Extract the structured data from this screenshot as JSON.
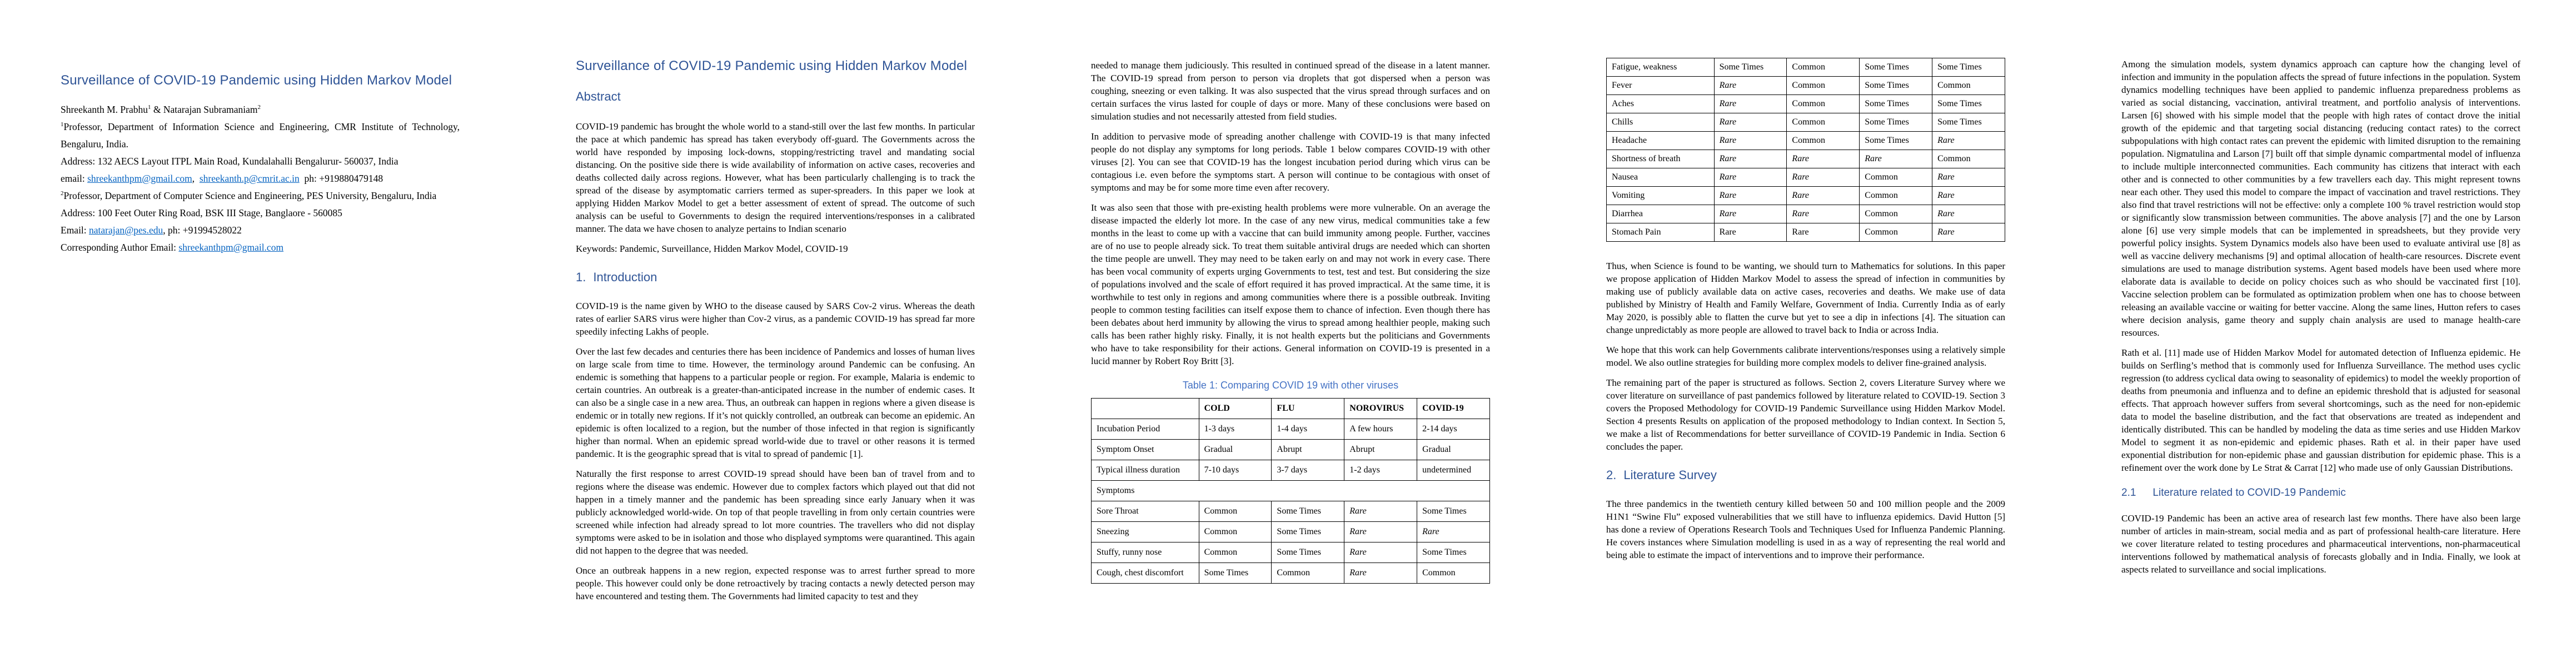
{
  "colors": {
    "heading_blue": "#2F5496",
    "caption_blue": "#4472C4",
    "link_blue": "#0563C1",
    "text": "#000000",
    "page_background": "#ffffff"
  },
  "page1": {
    "title": "Surveillance of COVID-19 Pandemic using Hidden Markov Model",
    "author": {
      "name1": "Shreekanth M. Prabhu",
      "sup1": "1",
      "amp": " & ",
      "name2": "Natarajan Subramaniam",
      "sup2": "2"
    },
    "affil1": {
      "sup": "1",
      "text": "Professor, Department of Information Science and Engineering, CMR Institute of Technology, Bengaluru, India."
    },
    "address1": "Address: 132 AECS Layout ITPL Main Road, Kundalahalli Bengalurur- 560037, India",
    "email_line1": {
      "label": "email: ",
      "link1": "shreekanthpm@gmail.com",
      "sep": ",  ",
      "link2": "shreekanth.p@cmrit.ac.in",
      "tail": "  ph: +919880479148"
    },
    "affil2": {
      "sup": "2",
      "text": "Professor, Department of Computer Science and Engineering, PES University, Bengaluru, India"
    },
    "address2": "Address: 100 Feet Outer Ring Road, BSK III Stage, Banglaore - 560085",
    "email_line2": {
      "label": "Email: ",
      "link": "natarajan@pes.edu",
      "tail": ", ph: +91994528022"
    },
    "corresponding": {
      "label": "Corresponding Author Email: ",
      "link": "shreekanthpm@gmail.com"
    }
  },
  "page2": {
    "title": "Surveillance of COVID-19 Pandemic using Hidden Markov Model",
    "abstract_heading": "Abstract",
    "abstract_text": "COVID-19 pandemic has brought the whole world to a stand-still over the last few months.  In particular the pace at which pandemic has spread has taken everybody off-guard.  The Governments across the world have responded by imposing lock-downs, stopping/restricting travel and mandating social distancing. On the positive side there is wide availability of information on active cases, recoveries and deaths collected daily across regions. However, what has been particularly challenging is to track the spread of the disease by asymptomatic carriers termed as super-spreaders. In this paper we look at applying Hidden Markov Model to get a better assessment of extent of spread.  The outcome of such analysis can be useful to Governments to design the required interventions/responses in a calibrated manner. The data we have chosen to analyze pertains to Indian scenario",
    "keywords": "Keywords: Pandemic, Surveillance, Hidden Markov Model, COVID-19",
    "intro_heading": {
      "num": "1.",
      "text": "Introduction"
    },
    "p1": "COVID-19 is the name given by WHO to the disease caused by SARS Cov-2 virus. Whereas the death rates of earlier SARS virus were higher than Cov-2 virus, as a pandemic COVID-19 has spread far more speedily infecting Lakhs of people.",
    "p2": "Over the last few decades and centuries there has been incidence of Pandemics and losses of human lives on large scale from time to time. However, the terminology around Pandemic can be confusing.  An endemic is something that happens to a particular people or region.  For example, Malaria is endemic to certain countries. An outbreak is a greater-than-anticipated increase in the number of endemic cases. It can also be a single case in a new area. Thus, an outbreak can happen in regions where a given disease is endemic or in totally new regions. If it’s not quickly controlled, an outbreak can become an epidemic. An epidemic is often localized to a region, but the number of those infected in that region is significantly higher than normal. When an epidemic spread world-wide due to travel or other reasons it is termed pandemic. It is the geographic spread that is vital to spread of pandemic [1].",
    "p3": "Naturally the first response to arrest COVID-19 spread should have been ban of travel from and to regions where the disease was endemic. However due to complex factors which played out that did not happen in a timely manner and the pandemic has been spreading since early January when it was publicly acknowledged world-wide. On top of that people travelling in from only certain countries were screened while infection had already spread to lot more countries. The travellers who did not display symptoms were asked to be in isolation and those who displayed symptoms were quarantined.  This again did not happen to the degree that was needed.",
    "p4": "Once an outbreak happens in a new region, expected response was to arrest further spread to more people. This however could only be done retroactively by tracing contacts a newly detected person may have encountered and testing them. The Governments had limited capacity to test and they"
  },
  "page3": {
    "p1": "needed to manage them judiciously. This resulted in continued spread of the disease in a latent manner. The COVID-19 spread from person to person via droplets that got dispersed when a person was coughing, sneezing or even talking. It was also suspected that the virus spread through surfaces and on certain surfaces the virus lasted for couple of days or more. Many of these conclusions were based on simulation studies and not necessarily attested from field studies.",
    "p2": "In addition to pervasive mode of spreading another challenge with COVID-19 is that many infected people do not display any symptoms for long periods. Table 1 below compares COVID-19 with other viruses [2]. You can see that COVID-19 has the longest incubation period during which virus can be contagious i.e. even before the symptoms start.  A person will continue to be contagious with onset of symptoms and may be for some more time even after recovery.",
    "p3": "It was also seen that those with pre-existing health problems were more vulnerable. On an average the disease impacted the elderly lot more.  In the case of any new virus, medical communities take a few months in the least to come up with a vaccine that can build immunity among people. Further, vaccines are of no use to people already sick. To treat them suitable antiviral drugs are needed which can shorten the time people are unwell. They may need to be taken early on and may not work in every case.  There has been vocal community of experts urging Governments to test, test and test. But considering the size of populations involved and the scale of effort required it has proved impractical. At the same time, it is worthwhile to test only in regions and among communities where there is a possible outbreak. Inviting people to common testing facilities can itself expose them to chance of infection. Even though there has been debates about herd immunity by allowing the virus to spread among healthier people, making such calls has been rather highly risky.  Finally, it is not health experts but the politicians and Governments who have to take responsibility for their actions. General information on COVID-19 is presented in a lucid manner by Robert Roy Britt [3].",
    "table_caption": "Table 1: Comparing COVID 19 with other viruses",
    "table1": {
      "headers": [
        "",
        "COLD",
        "FLU",
        "NOROVIRUS",
        "COVID-19"
      ],
      "rows": [
        {
          "label": "Incubation Period",
          "cells": [
            {
              "t": "1-3 days"
            },
            {
              "t": "1-4 days"
            },
            {
              "t": "A few hours"
            },
            {
              "t": "2-14 days"
            }
          ]
        },
        {
          "label": "Symptom Onset",
          "cells": [
            {
              "t": "Gradual"
            },
            {
              "t": "Abrupt"
            },
            {
              "t": "Abrupt"
            },
            {
              "t": "Gradual"
            }
          ]
        },
        {
          "label": "Typical illness duration",
          "cells": [
            {
              "t": "7-10 days"
            },
            {
              "t": "3-7 days"
            },
            {
              "t": "1-2 days"
            },
            {
              "t": "undetermined"
            }
          ]
        },
        {
          "section": "Symptoms"
        },
        {
          "label": "Sore Throat",
          "cells": [
            {
              "t": "Common",
              "s": "b"
            },
            {
              "t": "Some Times"
            },
            {
              "t": "Rare",
              "s": "i"
            },
            {
              "t": "Some Times"
            }
          ]
        },
        {
          "label": "Sneezing",
          "cells": [
            {
              "t": "Common",
              "s": "b"
            },
            {
              "t": "Some Times"
            },
            {
              "t": "Rare",
              "s": "i"
            },
            {
              "t": "Rare",
              "s": "i"
            }
          ]
        },
        {
          "label": "Stuffy, runny nose",
          "cells": [
            {
              "t": "Common",
              "s": "b"
            },
            {
              "t": "Some Times"
            },
            {
              "t": "Rare",
              "s": "i"
            },
            {
              "t": "Some Times"
            }
          ]
        },
        {
          "label": "Cough, chest discomfort",
          "cells": [
            {
              "t": "Some Times"
            },
            {
              "t": "Common",
              "s": "b"
            },
            {
              "t": "Rare",
              "s": "i"
            },
            {
              "t": "Common",
              "s": "b"
            }
          ]
        }
      ]
    }
  },
  "page4": {
    "table2": {
      "rows": [
        {
          "label": "Fatigue, weakness",
          "cells": [
            {
              "t": "Some Times"
            },
            {
              "t": "Common",
              "s": "b"
            },
            {
              "t": "Some Times"
            },
            {
              "t": "Some Times"
            }
          ]
        },
        {
          "label": "Fever",
          "cells": [
            {
              "t": "Rare",
              "s": "i"
            },
            {
              "t": "Common",
              "s": "b"
            },
            {
              "t": "Some Times"
            },
            {
              "t": "Common",
              "s": "b"
            }
          ]
        },
        {
          "label": "Aches",
          "cells": [
            {
              "t": "Rare",
              "s": "i"
            },
            {
              "t": "Common",
              "s": "b"
            },
            {
              "t": "Some Times"
            },
            {
              "t": "Some Times"
            }
          ]
        },
        {
          "label": "Chills",
          "cells": [
            {
              "t": "Rare",
              "s": "i"
            },
            {
              "t": "Common",
              "s": "b"
            },
            {
              "t": "Some Times"
            },
            {
              "t": "Some Times"
            }
          ]
        },
        {
          "label": "Headache",
          "cells": [
            {
              "t": "Rare",
              "s": "i"
            },
            {
              "t": "Common",
              "s": "b"
            },
            {
              "t": "Some Times"
            },
            {
              "t": "Rare",
              "s": "i"
            }
          ]
        },
        {
          "label": "Shortness of breath",
          "cells": [
            {
              "t": "Rare",
              "s": "i"
            },
            {
              "t": "Rare",
              "s": "i"
            },
            {
              "t": "Rare",
              "s": "i"
            },
            {
              "t": "Common",
              "s": "b"
            }
          ]
        },
        {
          "label": "Nausea",
          "cells": [
            {
              "t": "Rare",
              "s": "i"
            },
            {
              "t": "Rare",
              "s": "i"
            },
            {
              "t": "Common",
              "s": "b"
            },
            {
              "t": "Rare",
              "s": "i"
            }
          ]
        },
        {
          "label": "Vomiting",
          "cells": [
            {
              "t": "Rare",
              "s": "i"
            },
            {
              "t": "Rare",
              "s": "i"
            },
            {
              "t": "Common",
              "s": "b"
            },
            {
              "t": "Rare",
              "s": "i"
            }
          ]
        },
        {
          "label": "Diarrhea",
          "cells": [
            {
              "t": "Rare",
              "s": "i"
            },
            {
              "t": "Rare",
              "s": "i"
            },
            {
              "t": "Common",
              "s": "b"
            },
            {
              "t": "Rare",
              "s": "i"
            }
          ]
        },
        {
          "label": "Stomach Pain",
          "cells": [
            {
              "t": "Rare"
            },
            {
              "t": "Rare"
            },
            {
              "t": "Common",
              "s": "b"
            },
            {
              "t": "Rare",
              "s": "i"
            }
          ]
        }
      ]
    },
    "p1": "Thus, when Science is found to be wanting, we should turn to Mathematics for solutions. In this paper we propose application of Hidden Markov Model to assess the spread of infection in communities by making use of publicly available data on active cases, recoveries and deaths. We make use of data published by Ministry of Health and Family Welfare, Government of India. Currently India as of early May 2020, is possibly able to flatten the curve but yet to see a dip in infections [4]. The situation can change unpredictably as more people are allowed to travel back to India or across India.",
    "p2": "We hope that this work can help Governments calibrate interventions/responses using a relatively simple model. We also outline strategies for building more complex models to deliver fine-grained analysis.",
    "p3": "The remaining part of the paper is structured as follows. Section 2, covers Literature Survey where we cover literature on surveillance of past pandemics followed by literature related to COVID-19. Section 3 covers the Proposed Methodology for COVID-19 Pandemic Surveillance using Hidden Markov Model. Section 4 presents Results on application of the proposed methodology to Indian context.  In Section 5, we make a list of Recommendations for better surveillance of COVID-19 Pandemic in India. Section 6 concludes the paper.",
    "lit_heading": {
      "num": "2.",
      "text": "Literature Survey"
    },
    "p4": "The three pandemics in the twentieth century killed between 50 and 100 million people and the 2009 H1N1 “Swine Flu” exposed vulnerabilities that we still have to influenza epidemics. David Hutton [5] has done a review of Operations Research Tools and Techniques Used for Influenza Pandemic Planning. He covers instances where Simulation modelling is used in as a way of representing the real world and being able to estimate the impact of interventions and to improve their performance."
  },
  "page5": {
    "p1": "Among the simulation models, system dynamics approach can capture how the changing level of infection and immunity in the population affects the spread of future infections in the population. System dynamics modelling techniques have been applied to pandemic influenza preparedness problems as varied as social distancing, vaccination, antiviral treatment, and portfolio analysis of interventions. Larsen [6] showed with his simple model that the people with high rates of contact drove the initial growth of the epidemic and that targeting social distancing (reducing contact rates) to the correct subpopulations with high contact rates can prevent the epidemic with limited disruption to the remaining population. Nigmatulina and Larson [7] built off that simple dynamic compartmental model of influenza to include multiple interconnected communities. Each community has citizens that interact with each other and is connected to other communities by a few travellers each day. This might represent towns near each other. They used this model to compare the impact of vaccination and travel restrictions. They also find that travel restrictions will not be effective: only a complete 100 % travel restriction would stop or significantly slow transmission between communities. The above analysis [7] and the one by Larson alone [6] use very simple models that can be implemented in spreadsheets, but they provide very powerful policy insights. System Dynamics models also have been used to evaluate antiviral use [8] as well as vaccine delivery mechanisms [9] and optimal allocation of health-care resources. Discrete event simulations are used to manage distribution systems. Agent based models have been used where more elaborate data is available to decide on policy choices such as who should be vaccinated first [10]. Vaccine selection problem can be formulated as optimization problem when one has to choose between releasing an available vaccine or waiting for better vaccine. Along the same lines, Hutton refers to cases where decision analysis, game theory and supply chain analysis are used to manage health-care resources.",
    "p2": "Rath et al. [11] made use of Hidden Markov Model for automated detection of Influenza epidemic. He builds on Serfling’s method that is commonly used for Influenza Surveillance. The method uses cyclic regression (to address cyclical data owing to seasonality of epidemics) to model the weekly proportion of deaths from pneumonia and influenza and to define an epidemic threshold that is adjusted for seasonal effects. That approach however suffers from several shortcomings, such as the need for non-epidemic data to model the baseline distribution, and the fact that observations are treated as independent and identically distributed. This can be handled by modeling the data as time series and use Hidden Markov Model to segment it as non-epidemic and epidemic phases. Rath et al. in their paper have used exponential distribution for non-epidemic phase and gaussian distribution for epidemic phase. This is a refinement over the work done by Le Strat & Carrat [12] who made use of only Gaussian Distributions.",
    "sub_heading": {
      "num": "2.1",
      "text": "Literature related to COVID-19 Pandemic"
    },
    "p3": "COVID-19 Pandemic has been an active area of research last few months. There have also been large number of articles in main-stream, social media and as part of professional health-care literature. Here we cover literature related to testing procedures and pharmaceutical interventions, non-pharmaceutical interventions followed by mathematical analysis of forecasts globally and in India. Finally, we look at aspects related to surveillance and social implications."
  }
}
